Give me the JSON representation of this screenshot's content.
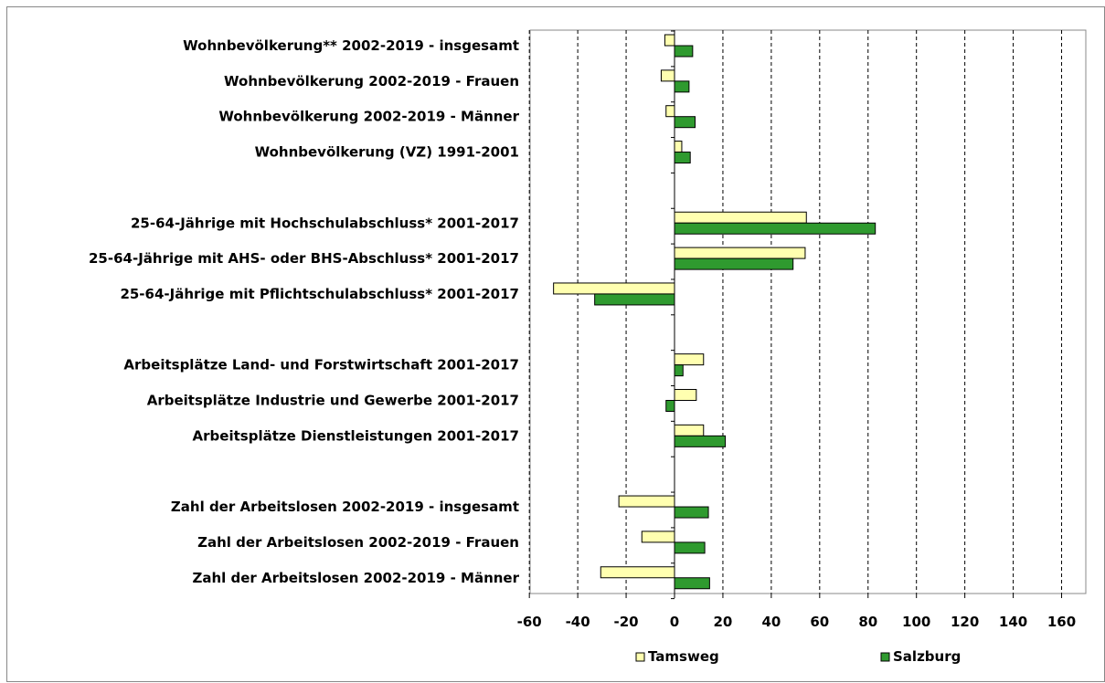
{
  "chart_data": {
    "type": "bar",
    "orientation": "horizontal",
    "title": "",
    "xlabel": "",
    "ylabel": "",
    "xlim": [
      -60,
      170
    ],
    "x_ticks": [
      -60,
      -40,
      -20,
      0,
      20,
      40,
      60,
      80,
      100,
      120,
      140,
      160
    ],
    "grid": "vertical dashed",
    "legend_position": "bottom",
    "categories": [
      "Wohnbevölkerung** 2002-2019 - insgesamt",
      "Wohnbevölkerung 2002-2019 - Frauen",
      "Wohnbevölkerung 2002-2019 - Männer",
      "Wohnbevölkerung (VZ) 1991-2001",
      "",
      "25-64-Jährige mit Hochschulabschluss* 2001-2017",
      "25-64-Jährige mit AHS- oder BHS-Abschluss* 2001-2017",
      "25-64-Jährige mit Pflichtschulabschluss* 2001-2017",
      "",
      "Arbeitsplätze Land- und Forstwirtschaft 2001-2017",
      "Arbeitsplätze Industrie und Gewerbe 2001-2017",
      "Arbeitsplätze Dienstleistungen 2001-2017",
      "",
      "Zahl der Arbeitslosen 2002-2019 - insgesamt",
      "Zahl der Arbeitslosen 2002-2019 - Frauen",
      "Zahl der Arbeitslosen 2002-2019 - Männer"
    ],
    "series": [
      {
        "name": "Tamsweg",
        "color": "#ffffb0",
        "values": [
          -4,
          -5.5,
          -3.5,
          3,
          null,
          54.5,
          54,
          -50,
          null,
          12,
          9,
          12,
          null,
          -23,
          -13.5,
          -30.5
        ]
      },
      {
        "name": "Salzburg",
        "color": "#2f9a2f",
        "values": [
          7.5,
          6,
          8.5,
          6.5,
          null,
          83,
          49,
          -33,
          null,
          3.5,
          -3.5,
          21,
          null,
          14,
          12.5,
          14.5
        ]
      }
    ]
  }
}
